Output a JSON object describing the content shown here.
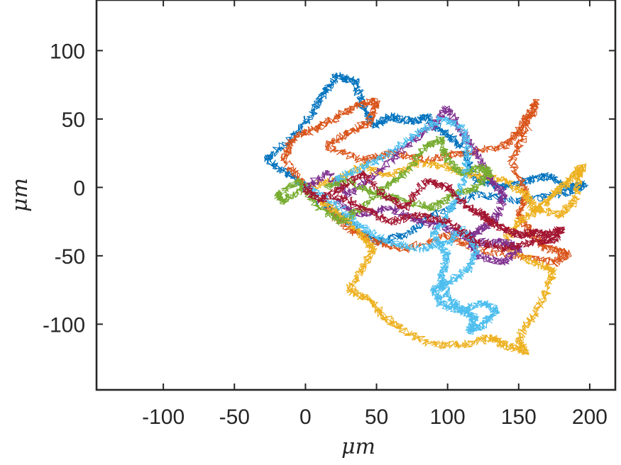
{
  "chart_data": {
    "type": "line",
    "title": "",
    "xlabel": "μm",
    "ylabel": "μm",
    "xlim": [
      -147,
      218
    ],
    "ylim": [
      -148,
      137
    ],
    "xticks": [
      -100,
      -50,
      0,
      50,
      100,
      150,
      200
    ],
    "yticks": [
      -100,
      -50,
      0,
      50,
      100
    ],
    "xtick_labels": [
      "-100",
      "-50",
      "0",
      "50",
      "100",
      "150",
      "200"
    ],
    "ytick_labels": [
      "-100",
      "-50",
      "0",
      "50",
      "100"
    ],
    "grid": false,
    "legend": "none",
    "box": true,
    "colors": [
      "#0072BD",
      "#D95319",
      "#EDB120",
      "#7E2F8E",
      "#77AC30",
      "#4DBEEE",
      "#A2142F"
    ],
    "series": [
      {
        "color": "#0072BD",
        "values": [
          [
            0,
            0
          ],
          [
            -12,
            10
          ],
          [
            -28,
            20
          ],
          [
            -10,
            35
          ],
          [
            5,
            55
          ],
          [
            12,
            68
          ],
          [
            22,
            82
          ],
          [
            35,
            78
          ],
          [
            40,
            60
          ],
          [
            48,
            45
          ],
          [
            60,
            52
          ],
          [
            75,
            48
          ],
          [
            85,
            52
          ],
          [
            95,
            42
          ],
          [
            110,
            30
          ],
          [
            120,
            5
          ],
          [
            140,
            0
          ],
          [
            155,
            5
          ],
          [
            170,
            8
          ],
          [
            185,
            0
          ],
          [
            197,
            2
          ],
          [
            180,
            -5
          ],
          [
            150,
            -10
          ],
          [
            120,
            -5
          ],
          [
            90,
            -20
          ],
          [
            70,
            -35
          ],
          [
            50,
            -40
          ],
          [
            30,
            -25
          ],
          [
            10,
            -10
          ]
        ]
      },
      {
        "color": "#D95319",
        "values": [
          [
            0,
            0
          ],
          [
            -15,
            20
          ],
          [
            -10,
            35
          ],
          [
            5,
            42
          ],
          [
            20,
            50
          ],
          [
            35,
            60
          ],
          [
            50,
            63
          ],
          [
            45,
            48
          ],
          [
            30,
            40
          ],
          [
            15,
            30
          ],
          [
            40,
            20
          ],
          [
            60,
            25
          ],
          [
            85,
            20
          ],
          [
            110,
            25
          ],
          [
            140,
            30
          ],
          [
            150,
            40
          ],
          [
            155,
            50
          ],
          [
            162,
            63
          ],
          [
            155,
            40
          ],
          [
            145,
            20
          ],
          [
            155,
            -5
          ],
          [
            150,
            -20
          ],
          [
            160,
            -35
          ],
          [
            170,
            -45
          ],
          [
            185,
            -48
          ],
          [
            175,
            -55
          ],
          [
            150,
            -50
          ],
          [
            120,
            -45
          ],
          [
            100,
            -35
          ],
          [
            70,
            -45
          ],
          [
            50,
            -40
          ],
          [
            30,
            -30
          ],
          [
            15,
            -15
          ]
        ]
      },
      {
        "color": "#EDB120",
        "values": [
          [
            0,
            0
          ],
          [
            20,
            5
          ],
          [
            40,
            15
          ],
          [
            60,
            8
          ],
          [
            80,
            18
          ],
          [
            100,
            15
          ],
          [
            120,
            8
          ],
          [
            140,
            5
          ],
          [
            155,
            -5
          ],
          [
            160,
            -15
          ],
          [
            180,
            -20
          ],
          [
            190,
            -10
          ],
          [
            192,
            8
          ],
          [
            195,
            15
          ],
          [
            185,
            5
          ],
          [
            175,
            -5
          ],
          [
            165,
            -15
          ],
          [
            150,
            -25
          ],
          [
            140,
            -40
          ],
          [
            160,
            -55
          ],
          [
            175,
            -60
          ],
          [
            170,
            -75
          ],
          [
            160,
            -95
          ],
          [
            150,
            -110
          ],
          [
            155,
            -120
          ],
          [
            140,
            -115
          ],
          [
            130,
            -110
          ],
          [
            110,
            -115
          ],
          [
            90,
            -115
          ],
          [
            70,
            -105
          ],
          [
            55,
            -95
          ],
          [
            45,
            -82
          ],
          [
            30,
            -75
          ],
          [
            40,
            -60
          ],
          [
            48,
            -45
          ],
          [
            40,
            -35
          ],
          [
            25,
            -20
          ],
          [
            10,
            -10
          ]
        ]
      },
      {
        "color": "#7E2F8E",
        "values": [
          [
            0,
            0
          ],
          [
            15,
            10
          ],
          [
            30,
            -5
          ],
          [
            50,
            10
          ],
          [
            70,
            30
          ],
          [
            90,
            45
          ],
          [
            100,
            58
          ],
          [
            110,
            40
          ],
          [
            120,
            25
          ],
          [
            130,
            5
          ],
          [
            140,
            -5
          ],
          [
            135,
            -20
          ],
          [
            125,
            -30
          ],
          [
            115,
            -35
          ],
          [
            120,
            -50
          ],
          [
            140,
            -55
          ],
          [
            150,
            -45
          ],
          [
            140,
            -40
          ],
          [
            120,
            -40
          ],
          [
            100,
            -30
          ],
          [
            80,
            -25
          ],
          [
            60,
            -15
          ],
          [
            40,
            -20
          ],
          [
            20,
            -10
          ]
        ]
      },
      {
        "color": "#77AC30",
        "values": [
          [
            0,
            0
          ],
          [
            -15,
            -10
          ],
          [
            -20,
            -5
          ],
          [
            -5,
            5
          ],
          [
            10,
            -15
          ],
          [
            25,
            -25
          ],
          [
            40,
            -15
          ],
          [
            55,
            0
          ],
          [
            70,
            10
          ],
          [
            85,
            30
          ],
          [
            95,
            35
          ],
          [
            100,
            20
          ],
          [
            110,
            10
          ],
          [
            125,
            15
          ],
          [
            130,
            10
          ],
          [
            120,
            0
          ],
          [
            105,
            -5
          ],
          [
            90,
            -15
          ],
          [
            70,
            -10
          ],
          [
            50,
            -5
          ],
          [
            30,
            5
          ],
          [
            15,
            0
          ]
        ]
      },
      {
        "color": "#4DBEEE",
        "values": [
          [
            0,
            0
          ],
          [
            20,
            -10
          ],
          [
            40,
            -30
          ],
          [
            60,
            -40
          ],
          [
            80,
            -45
          ],
          [
            100,
            -40
          ],
          [
            110,
            -30
          ],
          [
            120,
            -45
          ],
          [
            115,
            -60
          ],
          [
            100,
            -70
          ],
          [
            90,
            -75
          ],
          [
            95,
            -85
          ],
          [
            110,
            -90
          ],
          [
            125,
            -85
          ],
          [
            135,
            -90
          ],
          [
            125,
            -100
          ],
          [
            115,
            -105
          ],
          [
            120,
            -95
          ],
          [
            110,
            -90
          ],
          [
            100,
            -80
          ],
          [
            95,
            -65
          ],
          [
            100,
            -50
          ],
          [
            90,
            -35
          ],
          [
            100,
            -20
          ],
          [
            110,
            0
          ],
          [
            115,
            25
          ],
          [
            110,
            45
          ],
          [
            95,
            50
          ],
          [
            80,
            40
          ],
          [
            60,
            25
          ],
          [
            40,
            15
          ],
          [
            20,
            5
          ]
        ]
      },
      {
        "color": "#A2142F",
        "values": [
          [
            0,
            0
          ],
          [
            10,
            -10
          ],
          [
            25,
            0
          ],
          [
            40,
            10
          ],
          [
            55,
            -5
          ],
          [
            70,
            -15
          ],
          [
            85,
            5
          ],
          [
            100,
            0
          ],
          [
            115,
            -15
          ],
          [
            125,
            -20
          ],
          [
            130,
            -25
          ],
          [
            140,
            -30
          ],
          [
            150,
            -35
          ],
          [
            160,
            -33
          ],
          [
            170,
            -35
          ],
          [
            180,
            -30
          ],
          [
            175,
            -38
          ],
          [
            160,
            -40
          ],
          [
            140,
            -45
          ],
          [
            120,
            -40
          ],
          [
            100,
            -25
          ],
          [
            80,
            -20
          ],
          [
            60,
            -25
          ],
          [
            40,
            -15
          ],
          [
            20,
            -5
          ]
        ]
      }
    ]
  }
}
